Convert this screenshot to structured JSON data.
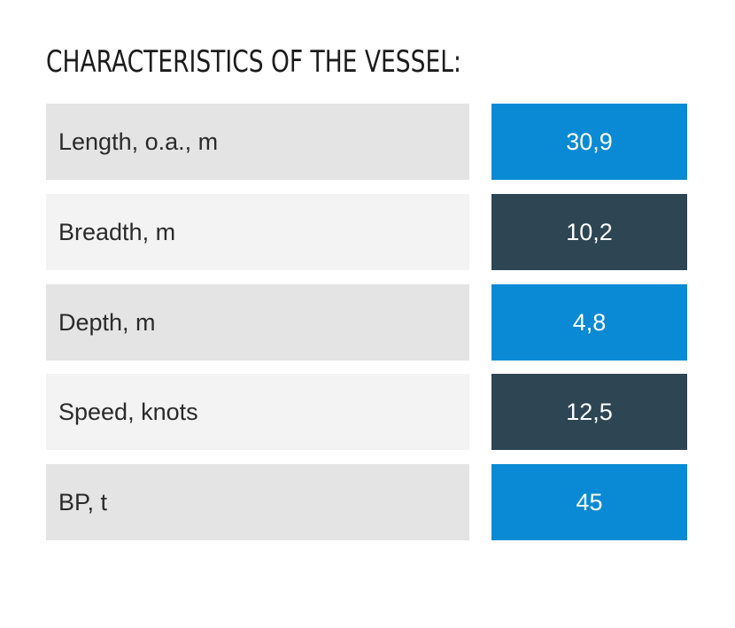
{
  "title": "CHARACTERISTICS OF THE VESSEL:",
  "colors": {
    "blue": "#0a8ad4",
    "dark": "#2e4654",
    "label_dark": "#e4e4e4",
    "label_light": "#f3f3f3"
  },
  "rows": [
    {
      "label": "Length, o.a., m",
      "value": "30,9"
    },
    {
      "label": "Breadth, m",
      "value": "10,2"
    },
    {
      "label": "Depth, m",
      "value": "4,8"
    },
    {
      "label": "Speed, knots",
      "value": "12,5"
    },
    {
      "label": "BP, t",
      "value": "45"
    }
  ]
}
